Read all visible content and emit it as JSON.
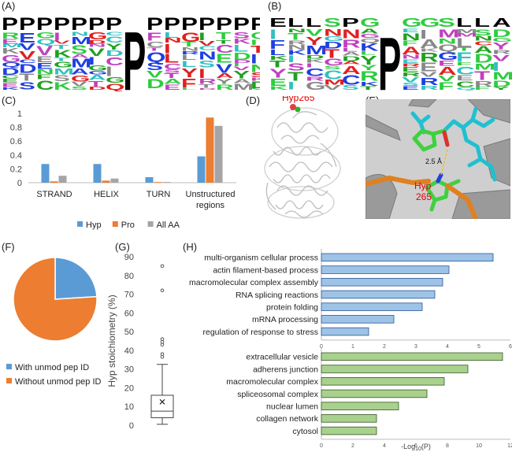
{
  "panels": {
    "a": "(A)",
    "b": "(B)",
    "c": "(C)",
    "d": "(D)",
    "e": "(E)",
    "f": "(F)",
    "g": "(G)",
    "h": "(H)"
  },
  "logos": {
    "a_letters": [
      "P",
      "P",
      "P",
      "P",
      "P",
      "P",
      "P",
      "P",
      "P",
      "P",
      "P",
      "P",
      "P",
      "P",
      "P"
    ],
    "b_letters": [
      "E",
      "L",
      "L",
      "S",
      "P",
      "G",
      "P",
      "G",
      "G",
      "S",
      "L",
      "L",
      "A"
    ]
  },
  "structure": {
    "d_label": "Hyp265",
    "e_distance": "2.5 Å",
    "e_label_line1": "Hyp",
    "e_label_line2": "265"
  },
  "colors": {
    "hyp": "#5b9bd5",
    "pro": "#ed7d31",
    "all": "#a5a5a5",
    "with": "#5b9bd5",
    "without": "#ed7d31",
    "bar_blue": "#9dc3e6",
    "bar_green": "#a9d18e",
    "highlight_red": "#e00000"
  },
  "chart_data": [
    {
      "id": "C",
      "type": "bar",
      "categories": [
        "STRAND",
        "HELIX",
        "TURN",
        "Unstructured regions"
      ],
      "series": [
        {
          "name": "Hyp",
          "values": [
            0.27,
            0.27,
            0.08,
            0.38
          ]
        },
        {
          "name": "Pro",
          "values": [
            0.02,
            0.03,
            0.01,
            0.94
          ]
        },
        {
          "name": "All AA",
          "values": [
            0.1,
            0.06,
            0.01,
            0.82
          ]
        }
      ],
      "ylim": [
        0,
        1
      ],
      "yticks": [
        "0",
        "0.2",
        "0.4",
        "0.6",
        "0.8",
        "1"
      ],
      "legend": "bottom",
      "grid": false
    },
    {
      "id": "F",
      "type": "pie",
      "labels": [
        "With unmod pep ID",
        "Without unmod pep ID"
      ],
      "values": [
        24,
        76
      ],
      "legend": "bottom"
    },
    {
      "id": "G",
      "type": "box",
      "ylabel": "Hyp stoichiometry (%)",
      "ylim": [
        0,
        90
      ],
      "yticks": [
        "0",
        "10",
        "20",
        "30",
        "40",
        "50",
        "60",
        "70",
        "80",
        "90"
      ],
      "box": {
        "min": 0.5,
        "q1": 4,
        "median": 7.5,
        "q3": 16,
        "max": 32.5,
        "mean": 12.5
      },
      "outliers": [
        85,
        72,
        46,
        44.5,
        43,
        38,
        36.5
      ]
    },
    {
      "id": "H",
      "type": "bar",
      "orientation": "horizontal",
      "xlabel": "-Log10(P)",
      "groups": [
        {
          "categories": [
            "multi-organism cellular process",
            "actin filament-based process",
            "macromolecular complex assembly",
            "RNA splicing reactions",
            "protein folding",
            "mRNA processing",
            "regulation of response to stress"
          ],
          "values": [
            5.45,
            4.05,
            3.85,
            3.6,
            3.2,
            2.3,
            1.5
          ],
          "xlim": [
            0,
            6
          ],
          "xticks": [
            "0",
            "1",
            "2",
            "3",
            "4",
            "5",
            "6"
          ]
        },
        {
          "categories": [
            "extracellular vesicle",
            "adherens junction",
            "macromolecular complex",
            "spliceosomal complex",
            "nuclear lumen",
            "collagen network",
            "cytosol"
          ],
          "values": [
            11.5,
            9.3,
            7.8,
            6.7,
            4.9,
            3.5,
            3.5
          ],
          "xlim": [
            0,
            12
          ],
          "xticks": [
            "0",
            "2",
            "4",
            "6",
            "8",
            "10",
            "12"
          ]
        }
      ]
    }
  ]
}
